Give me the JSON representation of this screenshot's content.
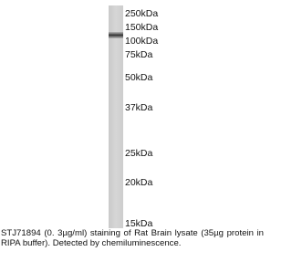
{
  "markers": [
    "250kDa",
    "150kDa",
    "100kDa",
    "75kDa",
    "50kDa",
    "37kDa",
    "25kDa",
    "20kDa",
    "15kDa"
  ],
  "caption": "STJ71894 (0. 3µg/ml) staining of Rat Brain lysate (35µg protein in RIPA buffer). Detected by chemiluminescence."
}
